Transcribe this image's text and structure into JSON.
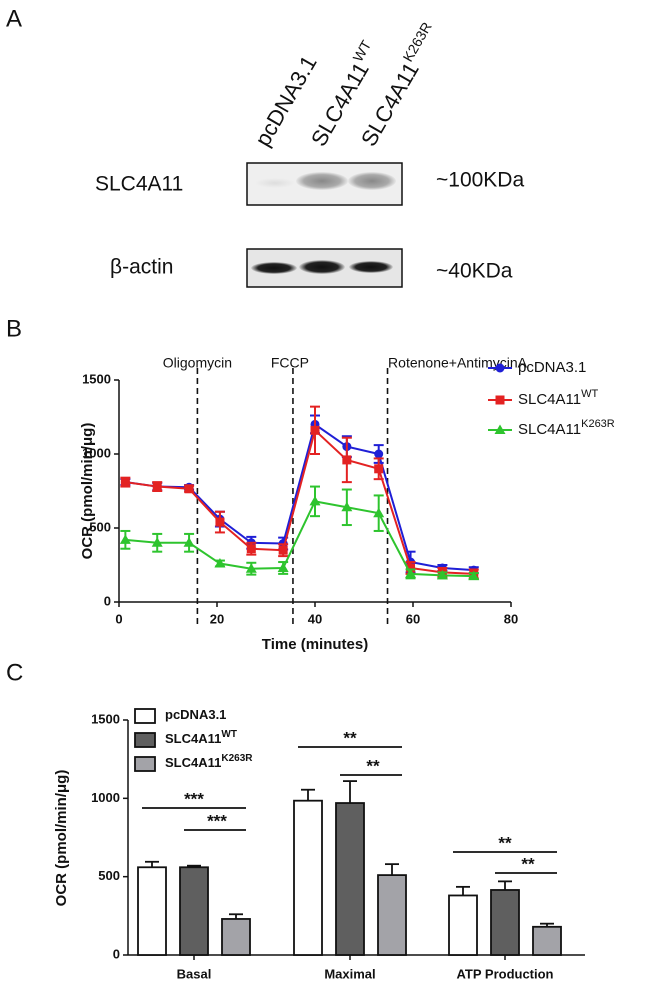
{
  "panel_labels": [
    "A",
    "B",
    "C"
  ],
  "blot": {
    "lanes": [
      {
        "text": "pcDNA3.1"
      },
      {
        "text": "SLC4A11",
        "sup": "WT"
      },
      {
        "text": "SLC4A11",
        "sup": "K263R"
      }
    ],
    "rows": [
      {
        "label": "SLC4A11",
        "size": "~100KDa"
      },
      {
        "label": "β-actin",
        "size": "~40KDa"
      }
    ]
  },
  "chart_data": [
    {
      "type": "line",
      "xlabel": "Time (minutes)",
      "ylabel": "OCR (pmol/min/μg)",
      "x": [
        1.3,
        7.8,
        14.3,
        20.6,
        27,
        33.5,
        40,
        46.5,
        53,
        59.5,
        66,
        72.4
      ],
      "xlim": [
        0,
        80
      ],
      "xticks": [
        0,
        20,
        40,
        60,
        80
      ],
      "ylim": [
        0,
        1500
      ],
      "yticks": [
        0,
        500,
        1000,
        1500
      ],
      "events": [
        {
          "label": "Oligomycin",
          "x": 16
        },
        {
          "label": "FCCP",
          "x": 35.5
        },
        {
          "label": "Rotenone+AntimycinA",
          "x": 54.8
        }
      ],
      "legend": "upper right",
      "series": [
        {
          "name": "pcDNA3.1",
          "color": "#1f1fd6",
          "marker": "circle",
          "values": [
            811,
            780,
            775,
            560,
            400,
            395,
            1200,
            1050,
            1000,
            270,
            230,
            215
          ],
          "errors": [
            20,
            25,
            15,
            50,
            40,
            40,
            60,
            70,
            60,
            70,
            20,
            20
          ]
        },
        {
          "name": "SLC4A11",
          "sup": "WT",
          "color": "#e32222",
          "marker": "square",
          "values": [
            810,
            780,
            765,
            540,
            360,
            350,
            1160,
            960,
            900,
            230,
            200,
            190
          ],
          "errors": [
            30,
            30,
            20,
            70,
            40,
            40,
            160,
            150,
            70,
            40,
            30,
            30
          ]
        },
        {
          "name": "SLC4A11",
          "sup": "K263R",
          "color": "#2ec42e",
          "marker": "triangle",
          "values": [
            420,
            400,
            400,
            260,
            225,
            230,
            680,
            640,
            600,
            190,
            180,
            175
          ],
          "errors": [
            60,
            60,
            60,
            20,
            40,
            40,
            100,
            120,
            120,
            30,
            20,
            20
          ]
        }
      ]
    },
    {
      "type": "bar",
      "ylabel": "OCR (pmol/min/μg)",
      "categories": [
        "Basal",
        "Maximal",
        "ATP Production"
      ],
      "ylim": [
        0,
        1500
      ],
      "yticks": [
        0,
        500,
        1000,
        1500
      ],
      "legend": "upper left",
      "series": [
        {
          "name": "pcDNA3.1",
          "color": "#ffffff",
          "values": [
            560,
            985,
            380
          ],
          "errors": [
            35,
            70,
            55
          ]
        },
        {
          "name": "SLC4A11",
          "sup": "WT",
          "color": "#5f5f5f",
          "values": [
            560,
            970,
            415
          ],
          "errors": [
            10,
            140,
            55
          ]
        },
        {
          "name": "SLC4A11",
          "sup": "K263R",
          "color": "#a3a3a8",
          "values": [
            230,
            510,
            180
          ],
          "errors": [
            30,
            70,
            20
          ]
        }
      ],
      "significance": [
        "***",
        "***",
        "**",
        "**",
        "**",
        "**"
      ]
    }
  ]
}
